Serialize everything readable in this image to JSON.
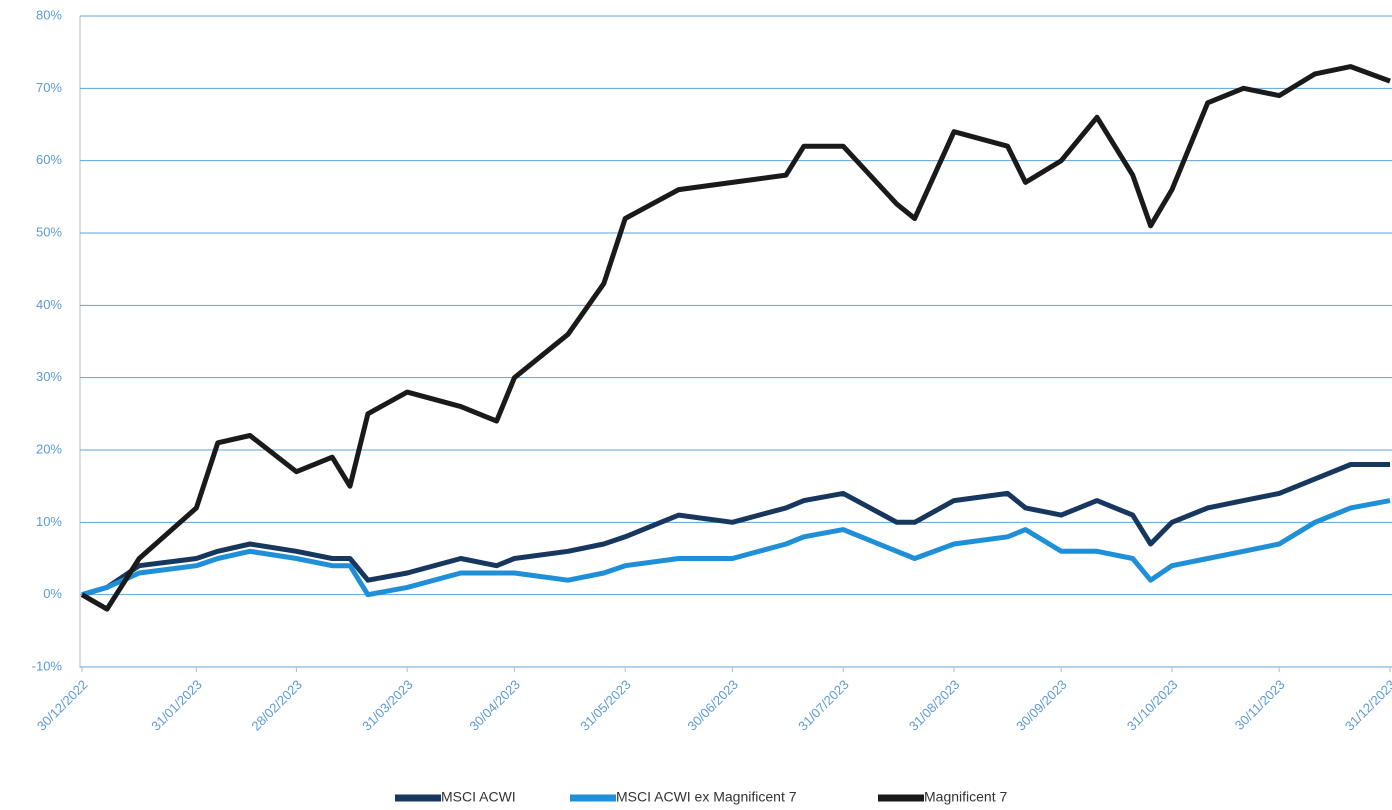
{
  "chart_data": {
    "type": "line",
    "x": [
      "30/12/2022",
      "06/01/2023",
      "15/01/2023",
      "31/01/2023",
      "06/02/2023",
      "15/02/2023",
      "28/02/2023",
      "10/03/2023",
      "15/03/2023",
      "20/03/2023",
      "31/03/2023",
      "15/04/2023",
      "25/04/2023",
      "30/04/2023",
      "15/05/2023",
      "25/05/2023",
      "31/05/2023",
      "15/06/2023",
      "30/06/2023",
      "15/07/2023",
      "20/07/2023",
      "31/07/2023",
      "15/08/2023",
      "20/08/2023",
      "31/08/2023",
      "15/09/2023",
      "20/09/2023",
      "30/09/2023",
      "10/10/2023",
      "20/10/2023",
      "25/10/2023",
      "31/10/2023",
      "10/11/2023",
      "20/11/2023",
      "30/11/2023",
      "10/12/2023",
      "20/12/2023",
      "31/12/2023"
    ],
    "series": [
      {
        "name": "MSCI ACWI",
        "color": "#17375e",
        "values": [
          0,
          1,
          4,
          5,
          6,
          7,
          6,
          5,
          5,
          2,
          3,
          5,
          4,
          5,
          6,
          7,
          8,
          11,
          10,
          12,
          13,
          14,
          10,
          10,
          13,
          14,
          12,
          11,
          13,
          11,
          7,
          10,
          12,
          13,
          14,
          16,
          18,
          18
        ]
      },
      {
        "name": "MSCI ACWI ex Magnificent 7",
        "color": "#1f8fd8",
        "values": [
          0,
          1,
          3,
          4,
          5,
          6,
          5,
          4,
          4,
          0,
          1,
          3,
          3,
          3,
          2,
          3,
          4,
          5,
          5,
          7,
          8,
          9,
          6,
          5,
          7,
          8,
          9,
          6,
          6,
          5,
          2,
          4,
          5,
          6,
          7,
          10,
          12,
          13
        ]
      },
      {
        "name": "Magnificent 7",
        "color": "#1a1a1a",
        "values": [
          0,
          -2,
          5,
          12,
          21,
          22,
          17,
          19,
          15,
          25,
          28,
          26,
          24,
          30,
          36,
          43,
          52,
          56,
          57,
          58,
          62,
          62,
          54,
          52,
          64,
          62,
          57,
          60,
          66,
          58,
          51,
          56,
          68,
          70,
          69,
          72,
          73,
          71
        ]
      }
    ],
    "xlim": [
      "30/12/2022",
      "31/12/2023"
    ],
    "xticks": [
      "30/12/2022",
      "31/01/2023",
      "28/02/2023",
      "31/03/2023",
      "30/04/2023",
      "31/05/2023",
      "30/06/2023",
      "31/07/2023",
      "31/08/2023",
      "30/09/2023",
      "31/10/2023",
      "30/11/2023",
      "31/12/2023"
    ],
    "ylim": [
      -10,
      80
    ],
    "yticks": [
      {
        "value": -10,
        "label": "-10%"
      },
      {
        "value": 0,
        "label": "0%"
      },
      {
        "value": 10,
        "label": "10%"
      },
      {
        "value": 20,
        "label": "20%"
      },
      {
        "value": 30,
        "label": "30%"
      },
      {
        "value": 40,
        "label": "40%"
      },
      {
        "value": 50,
        "label": "50%"
      },
      {
        "value": 60,
        "label": "60%"
      },
      {
        "value": 70,
        "label": "70%"
      },
      {
        "value": 80,
        "label": "80%"
      }
    ],
    "grid": true,
    "legend": "bottom"
  }
}
